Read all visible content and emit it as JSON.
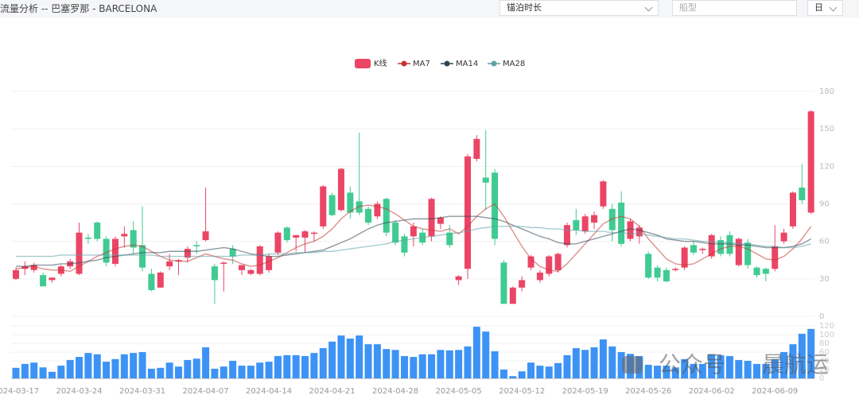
{
  "toolbar": {
    "title": "流量分析 -- 巴塞罗那 - BARCELONA",
    "metric": "锚泊时长",
    "ship_type_placeholder": "船型",
    "period": "日"
  },
  "watermark": [
    "公众号",
    "晨航运"
  ],
  "chart_data": [
    {
      "type": "candlestick",
      "categories": [
        "2024-03-17",
        null,
        null,
        null,
        null,
        null,
        null,
        "2024-03-24",
        null,
        null,
        null,
        null,
        null,
        null,
        "2024-03-31",
        null,
        null,
        null,
        null,
        null,
        null,
        "2024-04-07",
        null,
        null,
        null,
        null,
        null,
        null,
        "2024-04-14",
        null,
        null,
        null,
        null,
        null,
        null,
        "2024-04-21",
        null,
        null,
        null,
        null,
        null,
        null,
        "2024-04-28",
        null,
        null,
        null,
        null,
        null,
        null,
        "2024-05-05",
        null,
        null,
        null,
        null,
        null,
        null,
        "2024-05-12",
        null,
        null,
        null,
        null,
        null,
        null,
        "2024-05-19",
        null,
        null,
        null,
        null,
        null,
        null,
        "2024-05-26",
        null,
        null,
        null,
        null,
        null,
        null,
        "2024-06-02",
        null,
        null,
        null,
        null,
        null,
        null,
        "2024-06-09",
        null,
        null,
        null,
        null
      ],
      "ylim": [
        0,
        180
      ],
      "yticks": [
        0,
        30,
        60,
        90,
        120,
        150,
        180
      ],
      "grid": true,
      "legend": "top",
      "up_color": "#eb4566",
      "down_color": "#3fcb91",
      "series": [
        {
          "name": "K线",
          "color": "#eb4566",
          "values": [
            [
              30,
              37,
              29,
              39
            ],
            [
              38,
              40,
              33,
              44
            ],
            [
              37,
              41,
              35,
              43
            ],
            [
              33,
              24,
              24,
              35
            ],
            [
              29,
              31,
              27,
              31
            ],
            [
              34,
              40,
              32,
              41
            ],
            [
              40,
              44,
              38,
              46
            ],
            [
              34,
              67,
              33,
              75
            ],
            [
              63,
              62,
              58,
              66
            ],
            [
              75,
              62,
              60,
              76
            ],
            [
              62,
              43,
              40,
              64
            ],
            [
              42,
              62,
              40,
              64
            ],
            [
              64,
              66,
              55,
              72
            ],
            [
              69,
              55,
              50,
              76
            ],
            [
              57,
              39,
              36,
              88
            ],
            [
              34,
              21,
              20,
              38
            ],
            [
              23,
              35,
              23,
              36
            ],
            [
              40,
              44,
              37,
              50
            ],
            [
              44,
              45,
              33,
              46
            ],
            [
              47,
              54,
              43,
              56
            ],
            [
              57,
              56,
              50,
              60
            ],
            [
              61,
              68,
              60,
              103
            ],
            [
              40,
              29,
              10,
              42
            ],
            [
              42,
              43,
              20,
              44
            ],
            [
              54,
              48,
              42,
              57
            ],
            [
              37,
              41,
              33,
              41
            ],
            [
              34,
              37,
              33,
              38
            ],
            [
              34,
              56,
              33,
              57
            ],
            [
              37,
              48,
              35,
              50
            ],
            [
              51,
              67,
              49,
              68
            ],
            [
              71,
              61,
              59,
              72
            ],
            [
              63,
              65,
              52,
              65
            ],
            [
              63,
              68,
              51,
              69
            ],
            [
              66,
              67,
              60,
              68
            ],
            [
              72,
              104,
              70,
              105
            ],
            [
              97,
              81,
              80,
              99
            ],
            [
              85,
              118,
              84,
              119
            ],
            [
              99,
              83,
              78,
              104
            ],
            [
              92,
              83,
              81,
              147
            ],
            [
              86,
              75,
              73,
              88
            ],
            [
              80,
              90,
              78,
              92
            ],
            [
              94,
              67,
              64,
              95
            ],
            [
              75,
              59,
              57,
              77
            ],
            [
              64,
              51,
              48,
              66
            ],
            [
              64,
              72,
              56,
              75
            ],
            [
              67,
              59,
              57,
              70
            ],
            [
              64,
              94,
              60,
              95
            ],
            [
              74,
              79,
              70,
              80
            ],
            [
              67,
              57,
              55,
              73
            ],
            [
              29,
              32,
              25,
              33
            ],
            [
              38,
              128,
              30,
              130
            ],
            [
              126,
              142,
              124,
              145
            ],
            [
              111,
              107,
              85,
              149
            ],
            [
              115,
              62,
              57,
              118
            ],
            [
              43,
              10,
              10,
              45
            ],
            [
              10,
              23,
              10,
              24
            ],
            [
              23,
              29,
              20,
              32
            ],
            [
              39,
              48,
              37,
              49
            ],
            [
              29,
              35,
              27,
              37
            ],
            [
              34,
              48,
              32,
              49
            ],
            [
              37,
              50,
              35,
              51
            ],
            [
              57,
              73,
              55,
              75
            ],
            [
              77,
              69,
              65,
              86
            ],
            [
              68,
              80,
              66,
              82
            ],
            [
              75,
              81,
              70,
              84
            ],
            [
              88,
              108,
              86,
              109
            ],
            [
              86,
              69,
              60,
              90
            ],
            [
              91,
              58,
              56,
              100
            ],
            [
              62,
              76,
              60,
              78
            ],
            [
              64,
              71,
              58,
              73
            ],
            [
              50,
              31,
              30,
              52
            ],
            [
              39,
              31,
              28,
              41
            ],
            [
              37,
              28,
              27,
              39
            ],
            [
              37,
              38,
              36,
              39
            ],
            [
              39,
              55,
              37,
              56
            ],
            [
              57,
              51,
              49,
              60
            ],
            [
              53,
              54,
              50,
              55
            ],
            [
              48,
              65,
              46,
              66
            ],
            [
              61,
              50,
              48,
              64
            ],
            [
              65,
              50,
              48,
              68
            ],
            [
              41,
              62,
              40,
              63
            ],
            [
              59,
              41,
              38,
              62
            ],
            [
              39,
              33,
              31,
              40
            ],
            [
              38,
              34,
              28,
              39
            ],
            [
              38,
              56,
              36,
              73
            ],
            [
              60,
              67,
              58,
              70
            ],
            [
              72,
              99,
              70,
              100
            ],
            [
              103,
              93,
              90,
              122
            ],
            [
              83,
              164,
              82,
              165
            ]
          ]
        },
        {
          "name": "MA7",
          "color": "#c23531",
          "values": [
            38,
            39,
            40,
            38,
            37,
            37,
            36,
            40,
            44,
            48,
            51,
            54,
            56,
            57,
            56,
            52,
            48,
            45,
            44,
            44,
            47,
            50,
            48,
            46,
            45,
            42,
            40,
            41,
            44,
            47,
            51,
            55,
            58,
            60,
            64,
            70,
            78,
            84,
            88,
            89,
            88,
            86,
            82,
            77,
            72,
            70,
            69,
            68,
            70,
            66,
            72,
            80,
            86,
            90,
            80,
            68,
            56,
            46,
            40,
            37,
            36,
            42,
            50,
            58,
            66,
            74,
            78,
            80,
            78,
            72,
            62,
            54,
            46,
            42,
            41,
            42,
            46,
            50,
            54,
            56,
            56,
            54,
            50,
            46,
            45,
            48,
            54,
            62,
            72
          ]
        },
        {
          "name": "MA14",
          "color": "#2f4554",
          "values": [
            40,
            40,
            41,
            41,
            41,
            42,
            42,
            43,
            44,
            45,
            47,
            48,
            49,
            50,
            51,
            51,
            51,
            52,
            52,
            52,
            52,
            53,
            54,
            55,
            54,
            52,
            50,
            49,
            48,
            48,
            49,
            50,
            51,
            52,
            53,
            56,
            59,
            62,
            66,
            70,
            73,
            75,
            76,
            77,
            78,
            78,
            78,
            79,
            80,
            80,
            80,
            80,
            79,
            78,
            76,
            73,
            70,
            67,
            64,
            62,
            59,
            58,
            58,
            60,
            62,
            64,
            66,
            68,
            70,
            69,
            67,
            65,
            62,
            61,
            60,
            60,
            59,
            58,
            58,
            58,
            57,
            57,
            56,
            55,
            55,
            55,
            56,
            58,
            62
          ]
        },
        {
          "name": "MA28",
          "color": "#61a0a8",
          "values": [
            48,
            48,
            48,
            48,
            48,
            49,
            49,
            49,
            49,
            49,
            49,
            49,
            49,
            49,
            49,
            49,
            48,
            48,
            48,
            48,
            48,
            48,
            48,
            48,
            48,
            49,
            49,
            49,
            50,
            50,
            50,
            51,
            51,
            51,
            52,
            52,
            53,
            54,
            55,
            56,
            57,
            58,
            60,
            61,
            62,
            63,
            64,
            65,
            66,
            67,
            68,
            70,
            71,
            72,
            72,
            72,
            72,
            71,
            71,
            70,
            70,
            69,
            69,
            68,
            68,
            68,
            67,
            67,
            66,
            66,
            65,
            64,
            63,
            62,
            62,
            61,
            60,
            60,
            59,
            59,
            58,
            58,
            57,
            56,
            56,
            55,
            55,
            56,
            58
          ]
        }
      ]
    },
    {
      "type": "bar",
      "color": "#3d93f5",
      "ylim": [
        0,
        120
      ],
      "yticks": [
        0,
        20,
        40,
        60,
        80,
        100,
        120
      ],
      "grid": true,
      "values": [
        24,
        33,
        36,
        25,
        15,
        29,
        42,
        49,
        58,
        55,
        38,
        44,
        55,
        58,
        60,
        22,
        24,
        36,
        27,
        42,
        45,
        71,
        22,
        27,
        40,
        29,
        29,
        36,
        38,
        51,
        53,
        53,
        51,
        58,
        69,
        84,
        98,
        91,
        98,
        78,
        78,
        67,
        65,
        51,
        49,
        55,
        55,
        65,
        64,
        65,
        73,
        118,
        107,
        62,
        20,
        5,
        16,
        36,
        29,
        27,
        35,
        53,
        69,
        65,
        71,
        89,
        73,
        60,
        56,
        51,
        31,
        29,
        29,
        25,
        44,
        33,
        33,
        55,
        53,
        51,
        42,
        40,
        33,
        33,
        44,
        60,
        78,
        102,
        113
      ]
    }
  ]
}
